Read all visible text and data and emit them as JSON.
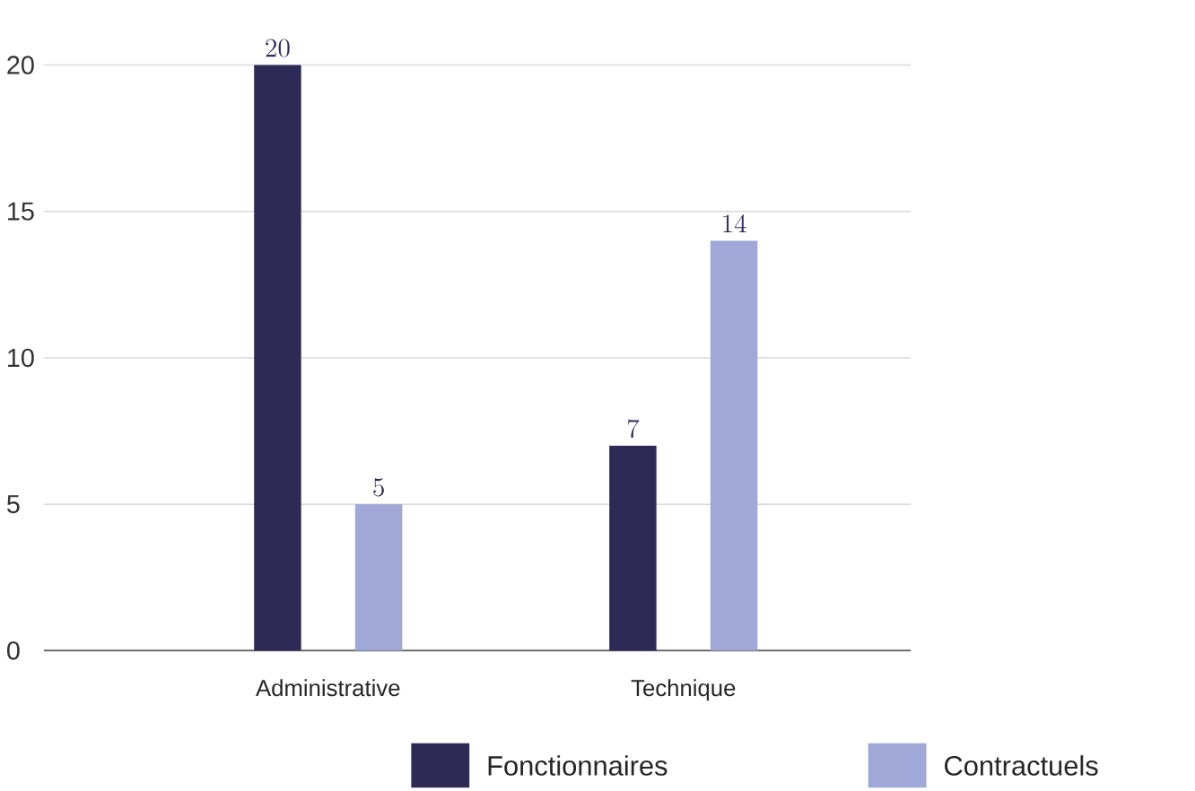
{
  "chart_data": {
    "type": "bar",
    "categories": [
      "Administrative",
      "Technique"
    ],
    "series": [
      {
        "name": "Fonctionnaires",
        "color": "#2e2a56",
        "values": [
          20,
          7
        ]
      },
      {
        "name": "Contractuels",
        "color": "#9fa8d6",
        "values": [
          5,
          14
        ]
      }
    ],
    "ylim": [
      0,
      20
    ],
    "yticks": [
      0,
      5,
      10,
      15,
      20
    ],
    "grid": "y",
    "legend": "bottom",
    "data_labels": true
  }
}
